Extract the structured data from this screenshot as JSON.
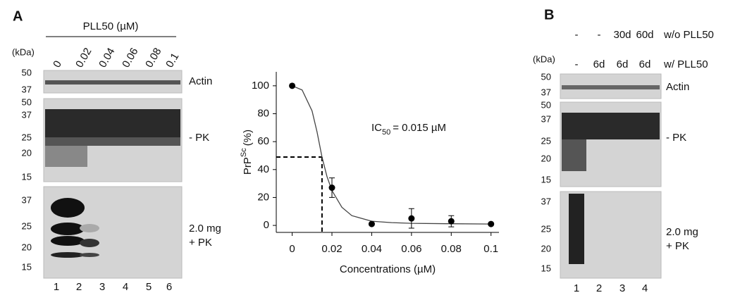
{
  "panel_a": {
    "label": "A",
    "treatment": "PLL50 (µM)",
    "kda": "(kDa)",
    "concentrations": [
      "0",
      "0.02",
      "0.04",
      "0.06",
      "0.08",
      "0.1"
    ],
    "actin": {
      "name": "Actin",
      "markers": [
        "50",
        "37"
      ]
    },
    "minus_pk": {
      "name": "- PK",
      "markers": [
        "50",
        "37",
        "25",
        "20",
        "15"
      ]
    },
    "plus_pk": {
      "name": [
        "2.0 mg",
        "+ PK"
      ],
      "markers": [
        "37",
        "25",
        "20",
        "15"
      ]
    },
    "lanes": [
      "1",
      "2",
      "3",
      "4",
      "5",
      "6"
    ]
  },
  "chart_data": {
    "type": "scatter",
    "x": [
      0,
      0.02,
      0.04,
      0.06,
      0.08,
      0.1
    ],
    "values": [
      100,
      27,
      1,
      5,
      3,
      1
    ],
    "errors": [
      null,
      7,
      null,
      7,
      4,
      null
    ],
    "color": "#000000",
    "fit": {
      "x": [
        0,
        0.005,
        0.01,
        0.0125,
        0.015,
        0.0175,
        0.02,
        0.025,
        0.03,
        0.04,
        0.05,
        0.06,
        0.08,
        0.1
      ],
      "values": [
        100,
        97,
        82,
        67,
        49,
        35,
        25,
        13,
        7,
        3,
        2,
        1.5,
        1.2,
        1
      ]
    },
    "xlim": [
      -0.008,
      0.104
    ],
    "ylim": [
      -5,
      110
    ],
    "xticks": [
      0,
      0.02,
      0.04,
      0.06,
      0.08,
      0.1
    ],
    "yticks": [
      0,
      20,
      40,
      60,
      80,
      100
    ],
    "xlabel": "Concentrations (µM)",
    "ylabel": {
      "main": "PrP",
      "sup": "Sc",
      "rest": "(%)"
    },
    "annotation": {
      "main": "IC",
      "sub": "50",
      "rest": "= 0.015 µM"
    },
    "ic50": {
      "x": 0.015,
      "y": 49
    }
  },
  "panel_b": {
    "label": "B",
    "kda": "(kDa)",
    "without": {
      "name": "w/o PLL50",
      "cells": [
        "-",
        "-",
        "30d",
        "60d"
      ]
    },
    "with": {
      "name": "w/ PLL50",
      "cells": [
        "-",
        "6d",
        "6d",
        "6d"
      ]
    },
    "actin": {
      "name": "Actin",
      "markers": [
        "50",
        "37"
      ]
    },
    "minus_pk": {
      "name": "- PK",
      "markers": [
        "50",
        "37",
        "25",
        "20",
        "15"
      ]
    },
    "plus_pk": {
      "name": [
        "2.0 mg",
        "+ PK"
      ],
      "markers": [
        "37",
        "25",
        "20",
        "15"
      ]
    },
    "lanes": [
      "1",
      "2",
      "3",
      "4"
    ]
  }
}
